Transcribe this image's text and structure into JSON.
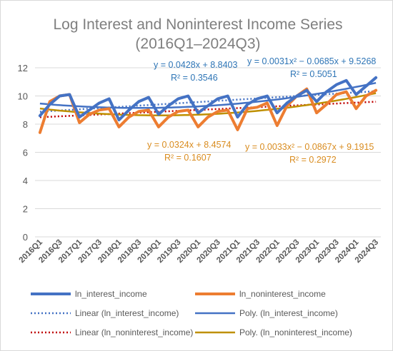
{
  "chart_data": {
    "type": "line",
    "title": "Log Interest and Noninterest Income Series",
    "subtitle": "(2016Q1–2024Q3)",
    "xlabel": "",
    "ylabel": "",
    "ylim": [
      0,
      12
    ],
    "yticks": [
      "0",
      "2",
      "4",
      "6",
      "8",
      "10",
      "12"
    ],
    "grid": true,
    "legend_position": "bottom",
    "x": [
      "2016Q1",
      "2016Q2",
      "2016Q3",
      "2016Q4",
      "2017Q1",
      "2017Q2",
      "2017Q3",
      "2017Q4",
      "2018Q1",
      "2018Q2",
      "2018Q3",
      "2018Q4",
      "2019Q1",
      "2019Q2",
      "2019Q3",
      "2019Q4",
      "2020Q1",
      "2020Q2",
      "2020Q3",
      "2020Q4",
      "2021Q1",
      "2021Q2",
      "2021Q3",
      "2021Q4",
      "2022Q1",
      "2022Q2",
      "2022Q3",
      "2022Q4",
      "2023Q1",
      "2023Q2",
      "2023Q3",
      "2023Q4",
      "2024Q1",
      "2024Q2",
      "2024Q3"
    ],
    "xtick_labels": [
      "2016Q1",
      "2016Q3",
      "2017Q1",
      "2017Q3",
      "2018Q1",
      "2018Q3",
      "2019Q1",
      "2019Q3",
      "2020Q1",
      "2020Q3",
      "2021Q1",
      "2021Q3",
      "2022Q1",
      "2022Q3",
      "2023Q1",
      "2023Q3",
      "2024Q1",
      "2024Q3"
    ],
    "series": [
      {
        "name": "ln_interest_income",
        "color": "#4472c4",
        "values": [
          8.6,
          9.4,
          10.0,
          10.1,
          8.5,
          9.0,
          9.5,
          9.8,
          8.3,
          9.0,
          9.6,
          9.9,
          8.7,
          9.3,
          9.8,
          10.0,
          8.8,
          9.3,
          9.8,
          10.0,
          8.5,
          9.4,
          9.8,
          10.0,
          8.8,
          9.5,
          10.0,
          10.4,
          9.6,
          10.3,
          10.8,
          11.1,
          10.1,
          10.7,
          11.3
        ]
      },
      {
        "name": "ln_noninterest_income",
        "color": "#ed7d31",
        "values": [
          7.4,
          9.6,
          10.0,
          10.1,
          8.1,
          8.7,
          9.0,
          9.1,
          7.8,
          8.5,
          8.9,
          9.0,
          7.8,
          8.5,
          8.9,
          9.0,
          7.8,
          8.5,
          8.9,
          9.0,
          7.6,
          9.1,
          9.2,
          9.5,
          7.9,
          9.3,
          10.0,
          10.5,
          8.8,
          9.4,
          10.1,
          10.3,
          9.1,
          10.0,
          10.4
        ]
      }
    ],
    "trendlines": [
      {
        "name": "Linear (ln_interest_income)",
        "type": "linear",
        "color": "#4472c4",
        "style": "dotted",
        "equation": "y = 0.0428x + 8.8403",
        "r2": "R² = 0.3546",
        "coef": [
          0.0428,
          8.8403
        ]
      },
      {
        "name": "Poly. (ln_interest_income)",
        "type": "poly",
        "color": "#4472c4",
        "style": "solid",
        "equation": "y = 0.0031x² − 0.0685x + 9.5268",
        "r2": "R² = 0.5051",
        "coef": [
          0.0031,
          -0.0685,
          9.5268
        ]
      },
      {
        "name": "Linear (ln_noninterest_income)",
        "type": "linear",
        "color": "#c00000",
        "style": "dotted",
        "equation": "y = 0.0324x + 8.4574",
        "r2": "R² = 0.1607",
        "coef": [
          0.0324,
          8.4574
        ]
      },
      {
        "name": "Poly. (ln_noninterest_income)",
        "type": "poly",
        "color": "#bf9000",
        "style": "solid",
        "equation": "y = 0.0033x² − 0.0867x + 9.1915",
        "r2": "R² = 0.2972",
        "coef": [
          0.0033,
          -0.0867,
          9.1915
        ]
      }
    ],
    "equation_colors": {
      "interest": "#2e75b6",
      "noninterest": "#d98c1f"
    }
  }
}
